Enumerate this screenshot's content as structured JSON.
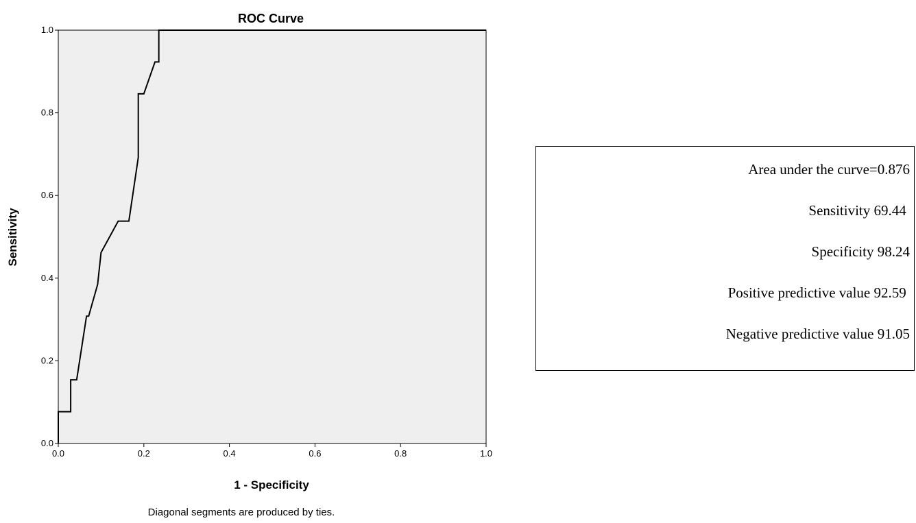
{
  "chart_data": {
    "type": "line",
    "title": "ROC Curve",
    "xlabel": "1 - Specificity",
    "ylabel": "Sensitivity",
    "xlim": [
      0,
      1
    ],
    "ylim": [
      0,
      1
    ],
    "x_ticks": [
      "0.0",
      "0.2",
      "0.4",
      "0.6",
      "0.8",
      "1.0"
    ],
    "y_ticks": [
      "0.0",
      "0.2",
      "0.4",
      "0.6",
      "0.8",
      "1.0"
    ],
    "grid": false,
    "background_color": "#efefef",
    "line_color": "#000000",
    "series": [
      {
        "x": [
          0,
          0,
          0.029,
          0.029,
          0.043,
          0.066,
          0.071,
          0.092,
          0.1,
          0.14,
          0.165,
          0.187,
          0.187,
          0.2,
          0.226,
          0.235,
          0.235,
          1.0
        ],
        "y": [
          0,
          0.077,
          0.077,
          0.154,
          0.154,
          0.308,
          0.308,
          0.385,
          0.462,
          0.538,
          0.538,
          0.692,
          0.846,
          0.846,
          0.923,
          0.923,
          1.0,
          1.0
        ]
      }
    ],
    "footnote": "Diagonal segments are produced by ties."
  },
  "stats": {
    "auc": "Area under the curve=0.876",
    "sensitivity": "Sensitivity 69.44 ",
    "specificity": "Specificity 98.24",
    "ppv": "Positive predictive value 92.59 ",
    "npv": "Negative predictive value 91.05"
  }
}
